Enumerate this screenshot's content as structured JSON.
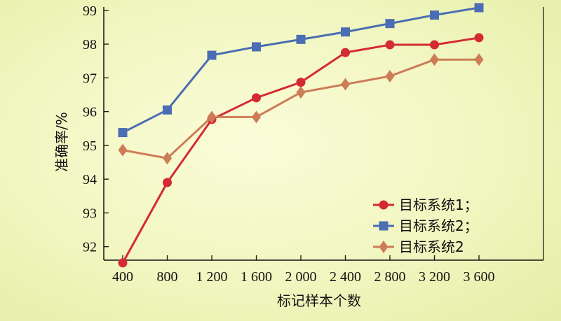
{
  "chart_data": {
    "type": "line",
    "xlabel": "标记样本个数",
    "ylabel": "准确率/%",
    "categories": [
      "400",
      "800",
      "1 200",
      "1 600",
      "2 000",
      "2 400",
      "2 800",
      "3 200",
      "3 600"
    ],
    "ylim": [
      91.6,
      99.1
    ],
    "yticks": [
      92,
      93,
      94,
      95,
      96,
      97,
      98,
      99
    ],
    "grid": false,
    "legend_position": "bottom-right",
    "series": [
      {
        "name": "目标系统1；",
        "marker": "circle",
        "color": "#d42a32",
        "values": [
          91.52,
          93.9,
          95.77,
          96.41,
          96.87,
          97.75,
          97.98,
          97.98,
          98.19
        ]
      },
      {
        "name": "目标系统2；",
        "marker": "square",
        "color": "#4a6db3",
        "values": [
          95.38,
          96.05,
          97.67,
          97.92,
          98.14,
          98.36,
          98.61,
          98.86,
          99.08
        ]
      },
      {
        "name": "目标系统2",
        "marker": "diamond",
        "color": "#cd7c58",
        "values": [
          94.86,
          94.62,
          95.84,
          95.84,
          96.57,
          96.81,
          97.05,
          97.54,
          97.54
        ]
      }
    ]
  }
}
